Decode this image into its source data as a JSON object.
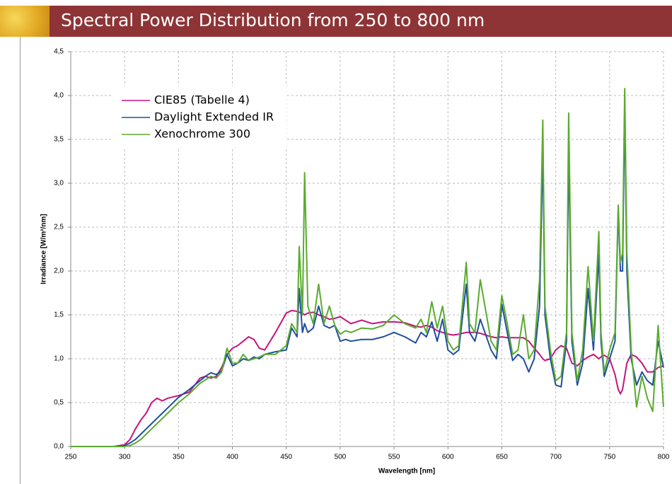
{
  "chart_data": {
    "type": "line",
    "title": "Spectral Power Distribution from 250 to 800 nm",
    "x_label": "Wavelength [nm]",
    "y_label": "Irradiance [W/m²/nm]",
    "x": [
      250,
      290,
      300,
      305,
      310,
      315,
      320,
      325,
      330,
      335,
      340,
      350,
      360,
      370,
      375,
      380,
      385,
      390,
      395,
      400,
      405,
      410,
      415,
      420,
      425,
      430,
      440,
      450,
      455,
      460,
      462,
      465,
      467,
      470,
      475,
      480,
      485,
      490,
      495,
      500,
      505,
      510,
      520,
      530,
      540,
      550,
      560,
      570,
      575,
      580,
      585,
      590,
      595,
      600,
      605,
      610,
      617,
      620,
      625,
      630,
      640,
      645,
      650,
      655,
      660,
      665,
      670,
      675,
      680,
      685,
      688,
      690,
      695,
      700,
      705,
      710,
      712,
      715,
      720,
      725,
      730,
      735,
      740,
      742,
      745,
      750,
      755,
      758,
      760,
      762,
      764,
      766,
      770,
      775,
      780,
      785,
      790,
      795,
      800
    ],
    "series": [
      {
        "name": "CIE85 (Tabelle 4)",
        "color": "#c4147c",
        "values": [
          0,
          0,
          0.02,
          0.08,
          0.2,
          0.3,
          0.38,
          0.5,
          0.55,
          0.52,
          0.55,
          0.58,
          0.62,
          0.78,
          0.8,
          0.78,
          0.8,
          0.9,
          1.05,
          1.12,
          1.15,
          1.2,
          1.25,
          1.22,
          1.12,
          1.1,
          1.3,
          1.52,
          1.55,
          1.54,
          1.53,
          1.52,
          1.5,
          1.52,
          1.53,
          1.5,
          1.48,
          1.45,
          1.46,
          1.48,
          1.44,
          1.4,
          1.44,
          1.4,
          1.42,
          1.42,
          1.41,
          1.37,
          1.36,
          1.38,
          1.36,
          1.32,
          1.3,
          1.28,
          1.27,
          1.28,
          1.3,
          1.3,
          1.3,
          1.29,
          1.25,
          1.24,
          1.25,
          1.24,
          1.24,
          1.24,
          1.24,
          1.2,
          1.12,
          1.05,
          1.0,
          0.98,
          1.0,
          1.1,
          1.15,
          1.12,
          1.05,
          0.95,
          0.92,
          0.98,
          1.02,
          1.05,
          1.0,
          1.02,
          1.04,
          1.0,
          0.82,
          0.65,
          0.6,
          0.65,
          0.8,
          0.95,
          1.05,
          1.02,
          0.95,
          0.85,
          0.85,
          0.9,
          0.92
        ]
      },
      {
        "name": "Daylight Extended IR",
        "color": "#1f4f9c",
        "values": [
          0,
          0,
          0.01,
          0.04,
          0.08,
          0.14,
          0.2,
          0.26,
          0.32,
          0.38,
          0.44,
          0.56,
          0.65,
          0.75,
          0.8,
          0.84,
          0.82,
          0.86,
          1.05,
          0.92,
          0.95,
          1.0,
          0.98,
          1.02,
          1.0,
          1.05,
          1.08,
          1.1,
          1.35,
          1.25,
          1.8,
          1.3,
          1.4,
          1.3,
          1.35,
          1.6,
          1.38,
          1.35,
          1.38,
          1.2,
          1.22,
          1.2,
          1.22,
          1.22,
          1.25,
          1.3,
          1.25,
          1.18,
          1.3,
          1.25,
          1.42,
          1.2,
          1.45,
          1.1,
          1.05,
          1.1,
          1.85,
          1.3,
          1.2,
          1.45,
          1.1,
          1.0,
          1.62,
          1.3,
          0.98,
          1.05,
          1.0,
          0.85,
          1.0,
          1.6,
          3.4,
          1.5,
          1.0,
          0.7,
          0.68,
          1.2,
          3.4,
          1.2,
          0.7,
          0.95,
          1.8,
          1.1,
          2.2,
          1.2,
          0.8,
          1.0,
          1.2,
          2.7,
          2.0,
          2.0,
          3.88,
          2.0,
          1.0,
          0.7,
          0.85,
          0.75,
          0.7,
          1.2,
          0.9
        ]
      },
      {
        "name": "Xenochrome 300",
        "color": "#5aab2f",
        "values": [
          0,
          0,
          0,
          0.01,
          0.04,
          0.08,
          0.14,
          0.2,
          0.26,
          0.32,
          0.38,
          0.5,
          0.6,
          0.72,
          0.76,
          0.8,
          0.78,
          0.85,
          1.12,
          0.95,
          0.95,
          1.05,
          0.98,
          1.0,
          1.02,
          1.05,
          1.05,
          1.15,
          1.4,
          1.3,
          2.28,
          1.5,
          3.12,
          1.6,
          1.4,
          1.85,
          1.4,
          1.6,
          1.38,
          1.28,
          1.32,
          1.3,
          1.35,
          1.34,
          1.38,
          1.5,
          1.4,
          1.35,
          1.45,
          1.3,
          1.65,
          1.35,
          1.6,
          1.2,
          1.1,
          1.15,
          2.1,
          1.4,
          1.3,
          1.9,
          1.2,
          1.1,
          1.72,
          1.4,
          1.05,
          1.1,
          1.5,
          1.0,
          1.1,
          1.9,
          3.72,
          1.6,
          1.1,
          0.75,
          0.8,
          1.3,
          3.8,
          1.3,
          0.75,
          1.1,
          2.05,
          1.2,
          2.45,
          1.3,
          0.85,
          1.1,
          1.3,
          2.75,
          2.1,
          2.2,
          4.08,
          2.2,
          1.1,
          0.45,
          0.8,
          0.55,
          0.4,
          1.38,
          0.45
        ]
      }
    ],
    "xlim": [
      250,
      800
    ],
    "xticks": [
      250,
      300,
      350,
      400,
      450,
      500,
      550,
      600,
      650,
      700,
      750,
      800
    ],
    "ylim": [
      0,
      4.5
    ],
    "yticks": [
      {
        "value": 0,
        "label": "0,0"
      },
      {
        "value": 0.5,
        "label": "0,5"
      },
      {
        "value": 1,
        "label": "1,0"
      },
      {
        "value": 1.5,
        "label": "1,5"
      },
      {
        "value": 2,
        "label": "2,0"
      },
      {
        "value": 2.5,
        "label": "2,5"
      },
      {
        "value": 3,
        "label": "3,0"
      },
      {
        "value": 3.5,
        "label": "3,5"
      },
      {
        "value": 4,
        "label": "4,0"
      },
      {
        "value": 4.5,
        "label": "4,5"
      }
    ],
    "grid": true,
    "legend": "upper left"
  }
}
